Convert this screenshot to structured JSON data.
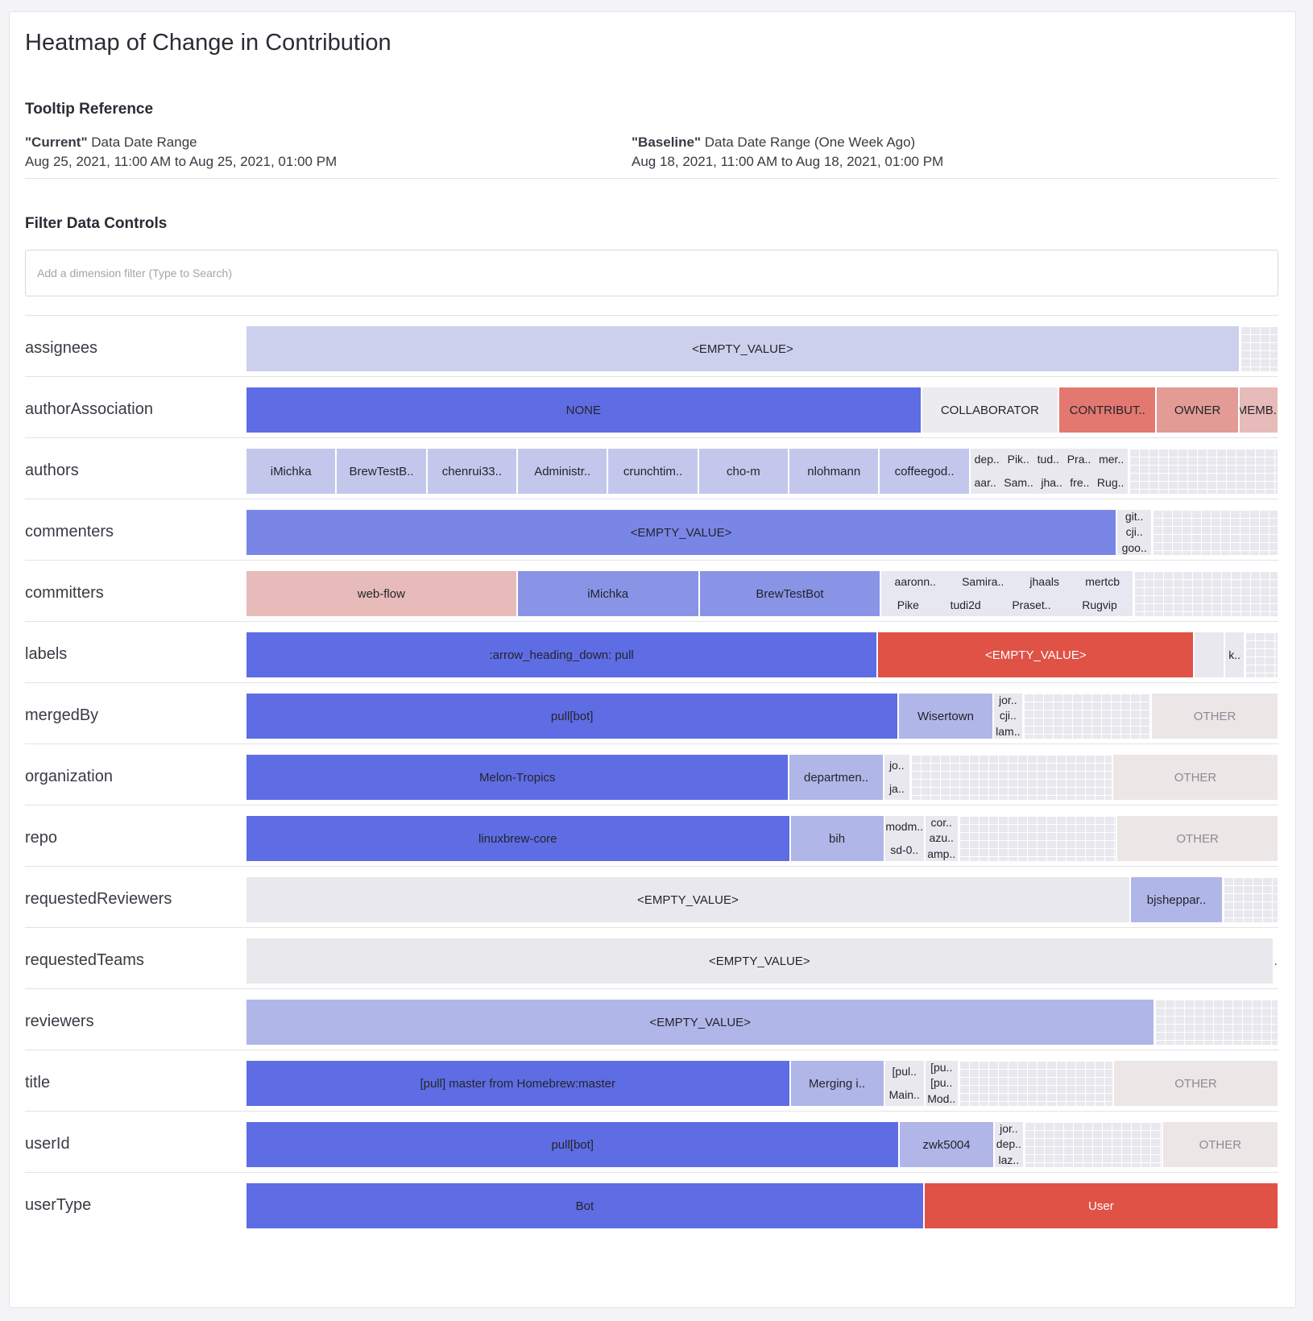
{
  "page": {
    "title": "Heatmap of Change in Contribution",
    "tooltip_title": "Tooltip Reference",
    "filter_title": "Filter Data Controls",
    "current": {
      "quoted": "\"Current\"",
      "label": "Data Date Range",
      "range": "Aug 25, 2021, 11:00 AM to Aug 25, 2021, 01:00 PM"
    },
    "baseline": {
      "quoted": "\"Baseline\"",
      "label": "Data Date Range (One Week Ago)",
      "range": "Aug 18, 2021, 11:00 AM to Aug 18, 2021, 01:00 PM"
    },
    "filter_placeholder": "Add a dimension filter (Type to Search)"
  },
  "colors": {
    "blue_strong": "#5e6de3",
    "blue_mid": "#7a86e6",
    "blue_light": "#b0b6e8",
    "blue_pale": "#cdd0ec",
    "neutral": "#e8e8ee",
    "neutral_warm": "#ede6e6",
    "red_strong": "#e05246",
    "red_mid": "#e27870",
    "red_light": "#e6bbb9"
  },
  "rows": [
    {
      "dimension": "assignees",
      "cells": [
        {
          "label": "<EMPTY_VALUE>",
          "w": 1180,
          "color": "#cdd0ec"
        },
        {
          "label": "",
          "w": 46,
          "color": "#e8e8ee",
          "grid": true
        }
      ]
    },
    {
      "dimension": "authorAssociation",
      "cells": [
        {
          "label": "NONE",
          "w": 802,
          "color": "#5e6de3"
        },
        {
          "label": "COLLABORATOR",
          "w": 163,
          "color": "#ecebee"
        },
        {
          "label": "CONTRIBUT..",
          "w": 116,
          "color": "#e27870"
        },
        {
          "label": "OWNER",
          "w": 98,
          "color": "#e29b95"
        },
        {
          "label": "MEMB..",
          "w": 47,
          "color": "#e6bbb9"
        }
      ]
    },
    {
      "dimension": "authors",
      "cells": [
        {
          "label": "iMichka",
          "w": 107,
          "color": "#c4c7ec"
        },
        {
          "label": "BrewTestB..",
          "w": 107,
          "color": "#c4c7ec"
        },
        {
          "label": "chenrui33..",
          "w": 107,
          "color": "#c4c7ec"
        },
        {
          "label": "Administr..",
          "w": 107,
          "color": "#c4c7ec"
        },
        {
          "label": "crunchtim..",
          "w": 107,
          "color": "#c4c7ec"
        },
        {
          "label": "cho-m",
          "w": 107,
          "color": "#c4c7ec"
        },
        {
          "label": "nlohmann",
          "w": 107,
          "color": "#c4c7ec"
        },
        {
          "label": "coffeegod..",
          "w": 107,
          "color": "#c4c7ec"
        },
        {
          "stack": [
            [
              "dep..",
              "Pik..",
              "tud..",
              "Pra..",
              "mer.."
            ],
            [
              "aar..",
              "Sam..",
              "jha..",
              "fre..",
              "Rug.."
            ]
          ],
          "w": 188,
          "color": "#e8e8ee"
        },
        {
          "label": "",
          "w": 177,
          "color": "#e8e8ee",
          "grid": true
        }
      ]
    },
    {
      "dimension": "commenters",
      "cells": [
        {
          "label": "<EMPTY_VALUE>",
          "w": 1034,
          "color": "#7a86e6"
        },
        {
          "stack": [
            [
              "git.."
            ],
            [
              "cji.."
            ],
            [
              "goo.."
            ]
          ],
          "w": 42,
          "color": "#e8e8ee"
        },
        {
          "label": "",
          "w": 150,
          "color": "#e8e8ee",
          "grid": true
        }
      ]
    },
    {
      "dimension": "committers",
      "cells": [
        {
          "label": "web-flow",
          "w": 322,
          "color": "#e6bbb9"
        },
        {
          "label": "iMichka",
          "w": 216,
          "color": "#8a94e6"
        },
        {
          "label": "BrewTestBot",
          "w": 216,
          "color": "#8a94e6"
        },
        {
          "stack": [
            [
              "aaronn..",
              "Samira..",
              "jhaals",
              "mertcb"
            ],
            [
              "Pike",
              "tudi2d",
              "Praset..",
              "Rugvip"
            ]
          ],
          "w": 300,
          "color": "#e6e7f0"
        },
        {
          "label": "",
          "w": 172,
          "color": "#e8e8ee",
          "grid": true
        }
      ]
    },
    {
      "dimension": "labels",
      "cells": [
        {
          "label": ":arrow_heading_down: pull",
          "w": 750,
          "color": "#5e6de3"
        },
        {
          "label": "<EMPTY_VALUE>",
          "w": 376,
          "color": "#e05246"
        },
        {
          "label": "",
          "w": 36,
          "color": "#e8e8ee"
        },
        {
          "stack": [
            [
              "k.."
            ],
            [
              ""
            ]
          ],
          "w": 24,
          "color": "#e8e8ee"
        },
        {
          "label": "",
          "w": 40,
          "color": "#e8e8ee",
          "grid": true
        }
      ]
    },
    {
      "dimension": "mergedBy",
      "cells": [
        {
          "label": "pull[bot]",
          "w": 775,
          "color": "#5e6de3"
        },
        {
          "label": "Wisertown",
          "w": 112,
          "color": "#b0b6e8"
        },
        {
          "stack": [
            [
              "jor.."
            ],
            [
              "cji.."
            ],
            [
              "lam.."
            ]
          ],
          "w": 36,
          "color": "#e8e8ee"
        },
        {
          "label": "",
          "w": 152,
          "color": "#e8e8ee",
          "grid": true
        },
        {
          "label": "OTHER",
          "w": 151,
          "color": "#ede6e6",
          "other": true
        }
      ]
    },
    {
      "dimension": "organization",
      "cells": [
        {
          "label": "Melon-Tropics",
          "w": 645,
          "color": "#5e6de3"
        },
        {
          "label": "departmen..",
          "w": 112,
          "color": "#b0b6e8"
        },
        {
          "stack": [
            [
              "jo.."
            ],
            [
              "ja.."
            ]
          ],
          "w": 32,
          "color": "#e8e8ee"
        },
        {
          "label": "",
          "w": 240,
          "color": "#e8e8ee",
          "grid": true
        },
        {
          "label": "OTHER",
          "w": 197,
          "color": "#ede6e6",
          "other": true
        }
      ]
    },
    {
      "dimension": "repo",
      "cells": [
        {
          "label": "linuxbrew-core",
          "w": 646,
          "color": "#5e6de3"
        },
        {
          "label": "bih",
          "w": 112,
          "color": "#b0b6e8"
        },
        {
          "stack": [
            [
              "modm.."
            ],
            [
              "sd-0.."
            ]
          ],
          "w": 48,
          "color": "#e8e8ee"
        },
        {
          "stack": [
            [
              "cor.."
            ],
            [
              "azu.."
            ],
            [
              "amp.."
            ]
          ],
          "w": 40,
          "color": "#e8e8ee"
        },
        {
          "label": "",
          "w": 188,
          "color": "#e8e8ee",
          "grid": true
        },
        {
          "label": "OTHER",
          "w": 192,
          "color": "#ede6e6",
          "other": true
        }
      ]
    },
    {
      "dimension": "requestedReviewers",
      "cells": [
        {
          "label": "<EMPTY_VALUE>",
          "w": 1050,
          "color": "#e8e8ee"
        },
        {
          "label": "bjsheppar..",
          "w": 110,
          "color": "#b0b6e8"
        },
        {
          "label": "",
          "w": 66,
          "color": "#e8e8ee",
          "grid": true
        }
      ]
    },
    {
      "dimension": "requestedTeams",
      "cells": [
        {
          "label": "<EMPTY_VALUE>",
          "w": 1220,
          "color": "#e9e9ed"
        },
        {
          "stack": [
            [
              ".."
            ],
            [
              ""
            ]
          ],
          "w": 6,
          "color": "#ffffff"
        }
      ]
    },
    {
      "dimension": "reviewers",
      "cells": [
        {
          "label": "<EMPTY_VALUE>",
          "w": 1079,
          "color": "#b0b6e8"
        },
        {
          "label": "",
          "w": 147,
          "color": "#e8e8ee",
          "grid": true
        }
      ]
    },
    {
      "dimension": "title",
      "cells": [
        {
          "label": "[pull] master from Homebrew:master",
          "w": 646,
          "color": "#5e6de3"
        },
        {
          "label": "Merging i..",
          "w": 112,
          "color": "#b0b6e8"
        },
        {
          "stack": [
            [
              "[pul.."
            ],
            [
              "Main.."
            ]
          ],
          "w": 48,
          "color": "#e8e8ee"
        },
        {
          "stack": [
            [
              "[pu.."
            ],
            [
              "[pu.."
            ],
            [
              "Mod.."
            ]
          ],
          "w": 40,
          "color": "#e8e8ee"
        },
        {
          "label": "",
          "w": 184,
          "color": "#e8e8ee",
          "grid": true
        },
        {
          "label": "OTHER",
          "w": 196,
          "color": "#ede6e6",
          "other": true
        }
      ]
    },
    {
      "dimension": "userId",
      "cells": [
        {
          "label": "pull[bot]",
          "w": 776,
          "color": "#5e6de3"
        },
        {
          "label": "zwk5004",
          "w": 112,
          "color": "#b0b6e8"
        },
        {
          "stack": [
            [
              "jor.."
            ],
            [
              "dep.."
            ],
            [
              "laz.."
            ]
          ],
          "w": 36,
          "color": "#e8e8ee"
        },
        {
          "label": "",
          "w": 164,
          "color": "#e8e8ee",
          "grid": true
        },
        {
          "label": "OTHER",
          "w": 138,
          "color": "#ede6e6",
          "other": true
        }
      ]
    },
    {
      "dimension": "userType",
      "cells": [
        {
          "label": "Bot",
          "w": 805,
          "color": "#5e6de3"
        },
        {
          "label": "User",
          "w": 421,
          "color": "#e05246"
        }
      ]
    }
  ]
}
